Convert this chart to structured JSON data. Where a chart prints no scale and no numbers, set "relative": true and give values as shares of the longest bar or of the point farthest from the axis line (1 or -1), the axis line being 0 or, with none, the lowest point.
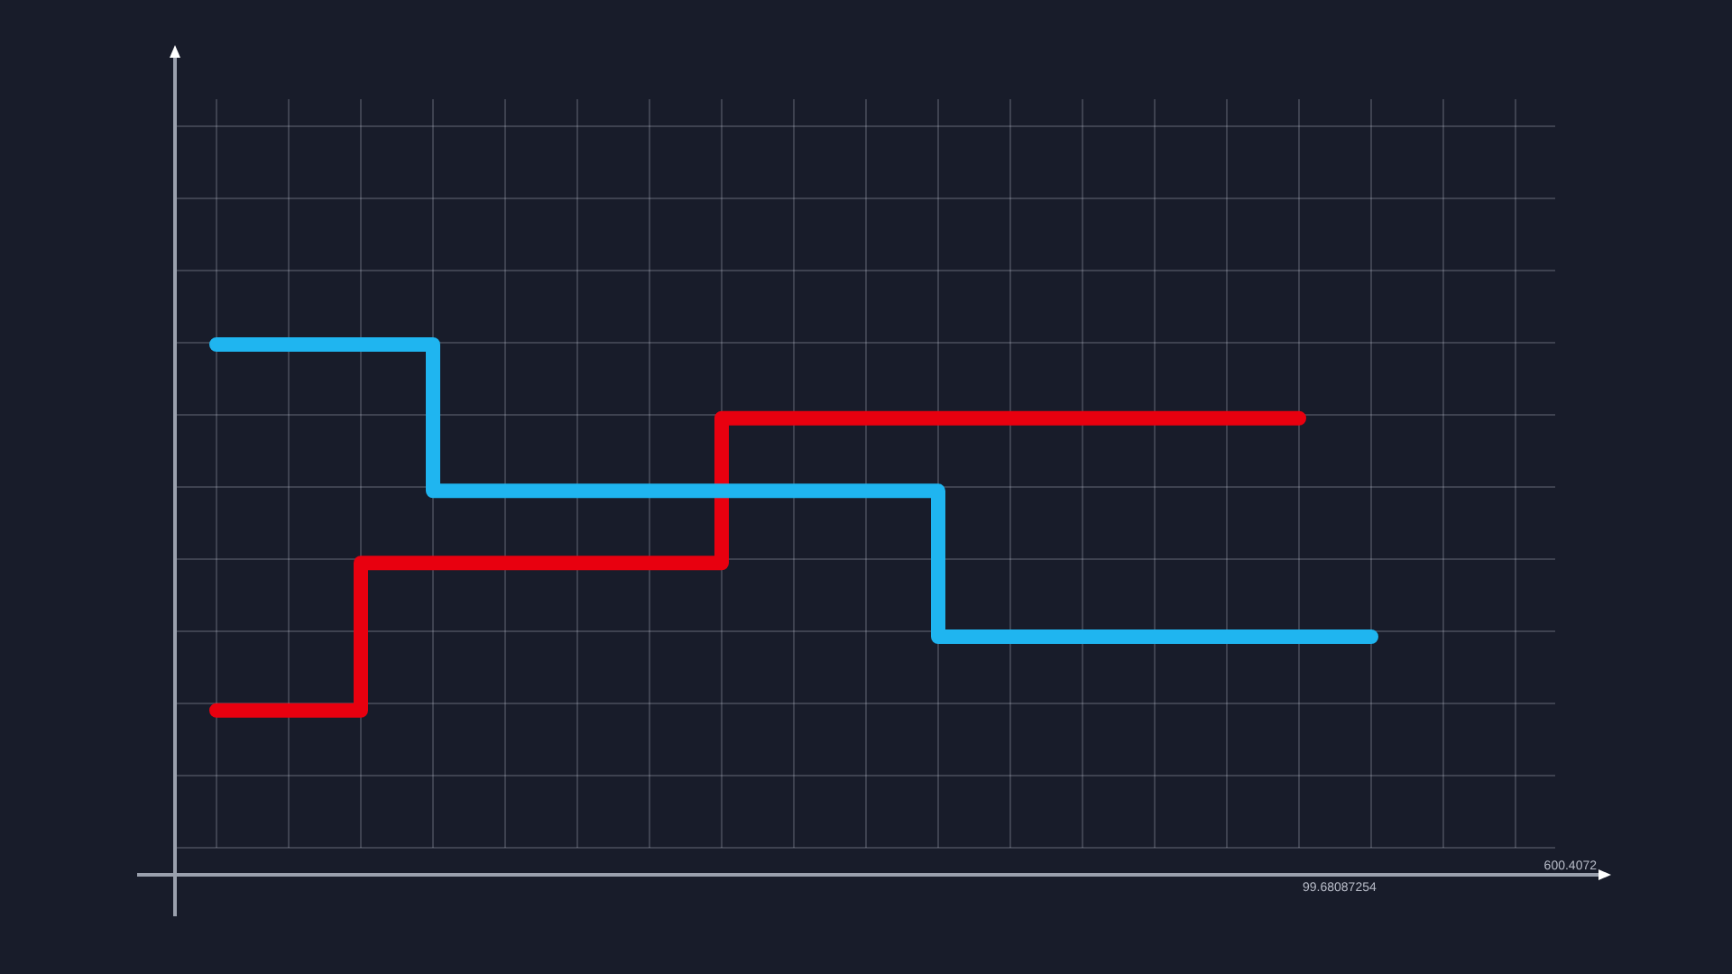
{
  "chart_data": {
    "type": "step",
    "relative": true,
    "grid": true,
    "categories": [
      null,
      null,
      null,
      null,
      null,
      null,
      null,
      null,
      null,
      null,
      null,
      null,
      null,
      null,
      null,
      null,
      null,
      null,
      null
    ],
    "series": [
      {
        "color": "#1fb5f0",
        "values": [
          1,
          1,
          1,
          1,
          0.724,
          0.724,
          0.724,
          0.724,
          0.724,
          0.724,
          0.724,
          0.449,
          0.449,
          0.449,
          0.449,
          0.449,
          0.449,
          null,
          null
        ]
      },
      {
        "color": "#e8000f",
        "values": [
          0.31,
          0.31,
          0.31,
          0.588,
          0.588,
          0.588,
          0.588,
          0.588,
          0.861,
          0.861,
          0.861,
          0.861,
          0.861,
          0.861,
          0.861,
          0.861,
          null,
          null,
          null
        ]
      }
    ],
    "annotations": [
      "99.68087254",
      "600.4072"
    ]
  }
}
